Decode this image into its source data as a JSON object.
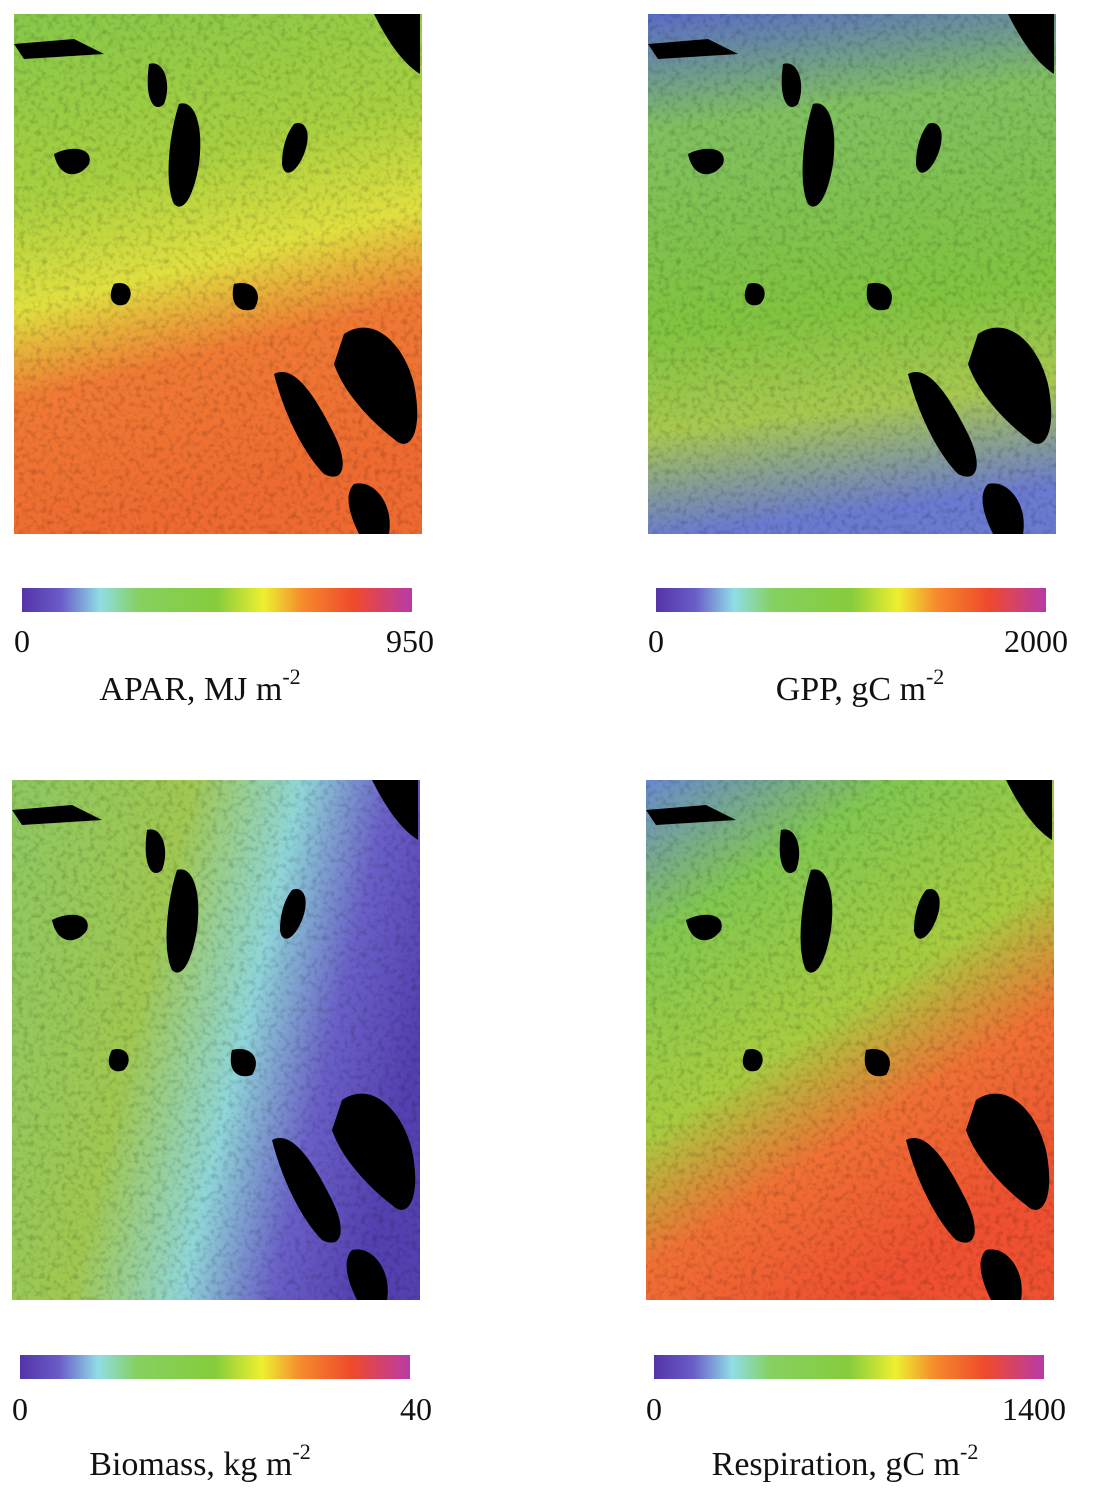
{
  "panels": [
    {
      "label": "APAR, MJ m",
      "exponent": "-2",
      "min": 0,
      "max": 950
    },
    {
      "label": "GPP, gC m",
      "exponent": "-2",
      "min": 0,
      "max": 2000
    },
    {
      "label": "Biomass, kg m",
      "exponent": "-2",
      "min": 0,
      "max": 40
    },
    {
      "label": "Respiration, gC m",
      "exponent": "-2",
      "min": 0,
      "max": 1400
    }
  ]
}
